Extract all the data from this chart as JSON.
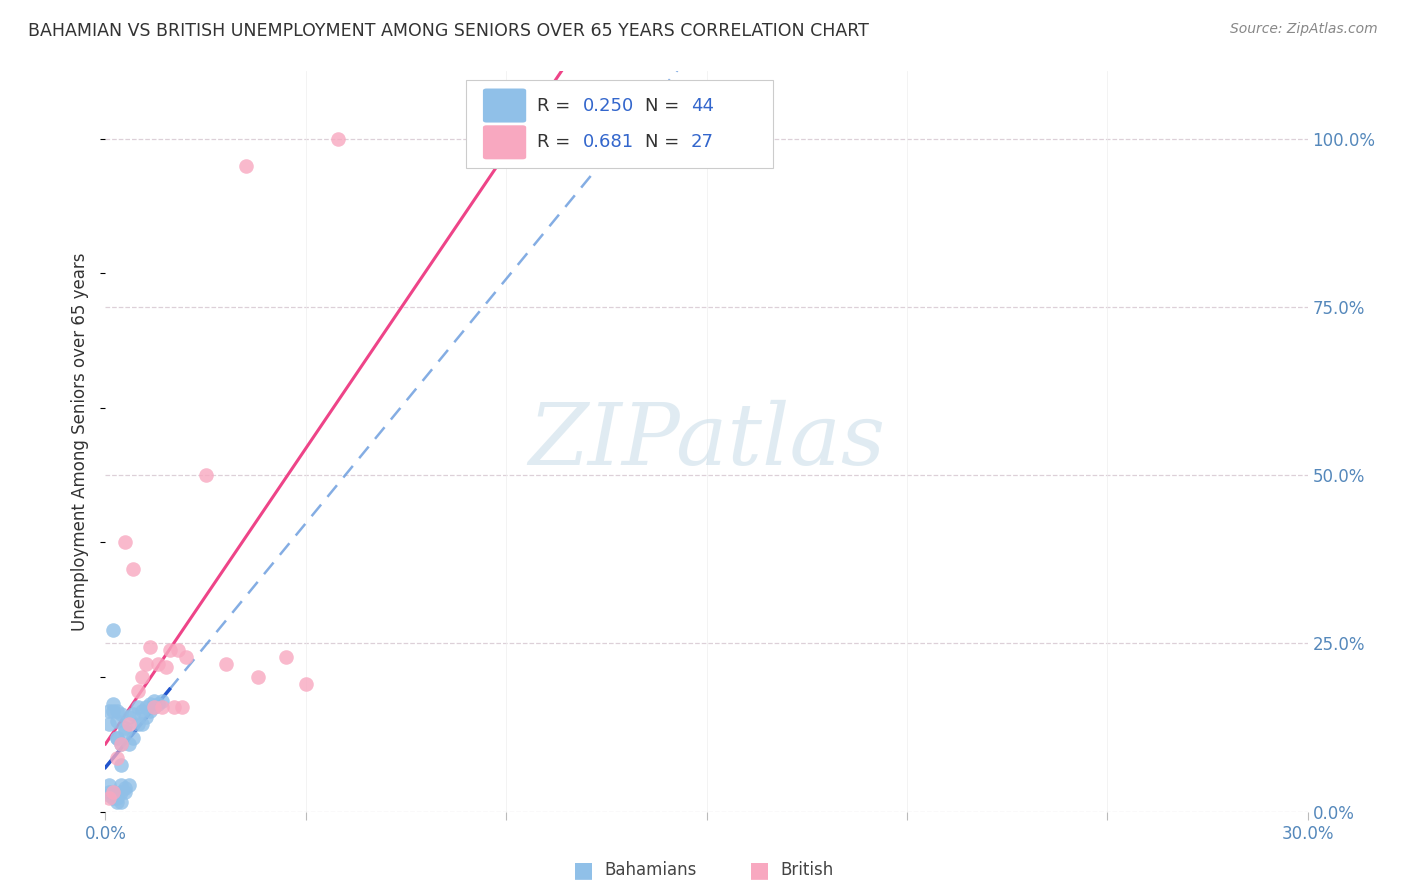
{
  "title": "BAHAMIAN VS BRITISH UNEMPLOYMENT AMONG SENIORS OVER 65 YEARS CORRELATION CHART",
  "source": "Source: ZipAtlas.com",
  "ylabel": "Unemployment Among Seniors over 65 years",
  "xlim": [
    0.0,
    0.3
  ],
  "ylim": [
    0.0,
    1.1
  ],
  "xticks": [
    0.0,
    0.05,
    0.1,
    0.15,
    0.2,
    0.25,
    0.3
  ],
  "xtick_labels": [
    "0.0%",
    "",
    "",
    "",
    "",
    "",
    "30.0%"
  ],
  "ytick_vals": [
    0.0,
    0.25,
    0.5,
    0.75,
    1.0
  ],
  "ytick_labels": [
    "0.0%",
    "25.0%",
    "50.0%",
    "75.0%",
    "100.0%"
  ],
  "watermark": "ZIPatlas",
  "bahamian_color": "#90C0E8",
  "british_color": "#F8A8C0",
  "bahamian_line_solid_color": "#2255CC",
  "bahamian_line_dash_color": "#6699DD",
  "british_line_color": "#EE4488",
  "background_color": "#ffffff",
  "legend_r1": "0.250",
  "legend_n1": "44",
  "legend_r2": "0.681",
  "legend_n2": "27",
  "text_color": "#333333",
  "tick_label_color": "#5588bb",
  "source_color": "#888888",
  "watermark_color": "#c8dce8",
  "bah_x": [
    0.002,
    0.003,
    0.003,
    0.004,
    0.004,
    0.005,
    0.005,
    0.006,
    0.006,
    0.007,
    0.007,
    0.008,
    0.008,
    0.009,
    0.009,
    0.01,
    0.01,
    0.011,
    0.011,
    0.012,
    0.012,
    0.013,
    0.014,
    0.001,
    0.001,
    0.002,
    0.002,
    0.003,
    0.003,
    0.004,
    0.004,
    0.005,
    0.005,
    0.006,
    0.001,
    0.001,
    0.001,
    0.002,
    0.002,
    0.003,
    0.003,
    0.003,
    0.004,
    0.004
  ],
  "bah_y": [
    0.27,
    0.135,
    0.11,
    0.145,
    0.1,
    0.125,
    0.12,
    0.14,
    0.1,
    0.145,
    0.11,
    0.155,
    0.13,
    0.15,
    0.13,
    0.155,
    0.14,
    0.16,
    0.15,
    0.165,
    0.155,
    0.16,
    0.165,
    0.13,
    0.15,
    0.15,
    0.16,
    0.15,
    0.11,
    0.07,
    0.04,
    0.035,
    0.03,
    0.04,
    0.03,
    0.025,
    0.04,
    0.03,
    0.02,
    0.025,
    0.02,
    0.015,
    0.03,
    0.015
  ],
  "brit_x": [
    0.001,
    0.002,
    0.003,
    0.004,
    0.005,
    0.006,
    0.007,
    0.008,
    0.009,
    0.01,
    0.011,
    0.012,
    0.013,
    0.014,
    0.015,
    0.016,
    0.017,
    0.018,
    0.019,
    0.02,
    0.025,
    0.03,
    0.035,
    0.038,
    0.045,
    0.05,
    0.058
  ],
  "brit_y": [
    0.02,
    0.03,
    0.08,
    0.1,
    0.4,
    0.13,
    0.36,
    0.18,
    0.2,
    0.22,
    0.245,
    0.155,
    0.22,
    0.155,
    0.215,
    0.24,
    0.155,
    0.24,
    0.155,
    0.23,
    0.5,
    0.22,
    0.96,
    0.2,
    0.23,
    0.19,
    1.0
  ]
}
